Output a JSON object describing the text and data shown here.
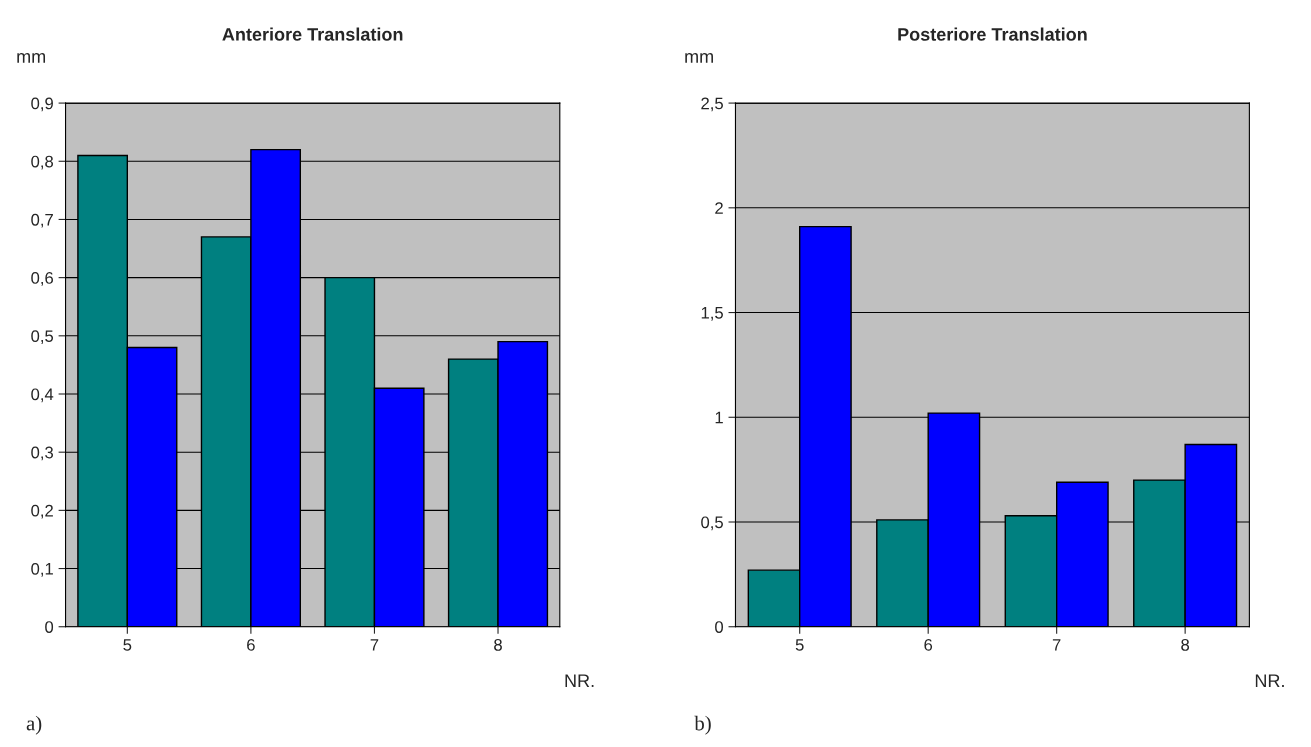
{
  "chart_data": [
    {
      "type": "bar",
      "title": "Anteriore Translation",
      "ylabel": "mm",
      "xlabel": "NR.",
      "annotations": [
        "a)"
      ],
      "categories": [
        "5",
        "6",
        "7",
        "8"
      ],
      "series": [
        {
          "color": "#008080",
          "values": [
            0.81,
            0.67,
            0.6,
            0.46
          ]
        },
        {
          "color": "#0000ff",
          "values": [
            0.48,
            0.82,
            0.41,
            0.49
          ]
        }
      ],
      "ylim": [
        0,
        0.9
      ],
      "yticks": [
        0,
        {
          "value": 0.1,
          "label": "0,1"
        },
        {
          "value": 0.2,
          "label": "0,2"
        },
        {
          "value": 0.3,
          "label": "0,3"
        },
        {
          "value": 0.4,
          "label": "0,4"
        },
        {
          "value": 0.5,
          "label": "0,5"
        },
        {
          "value": 0.6,
          "label": "0,6"
        },
        {
          "value": 0.7,
          "label": "0,7"
        },
        {
          "value": 0.8,
          "label": "0,8"
        },
        {
          "value": 0.9,
          "label": "0,9"
        }
      ],
      "grid": "y"
    },
    {
      "type": "bar",
      "title": "Posteriore Translation",
      "ylabel": "mm",
      "xlabel": "NR.",
      "annotations": [
        "b)"
      ],
      "categories": [
        "5",
        "6",
        "7",
        "8"
      ],
      "series": [
        {
          "color": "#008080",
          "values": [
            0.27,
            0.51,
            0.53,
            0.7
          ]
        },
        {
          "color": "#0000ff",
          "values": [
            1.91,
            1.02,
            0.69,
            0.87
          ]
        }
      ],
      "ylim": [
        0,
        2.5
      ],
      "yticks": [
        0,
        {
          "value": 0.5,
          "label": "0,5"
        },
        1,
        {
          "value": 1.5,
          "label": "1,5"
        },
        2,
        {
          "value": 2.5,
          "label": "2,5"
        }
      ],
      "grid": "y"
    }
  ]
}
